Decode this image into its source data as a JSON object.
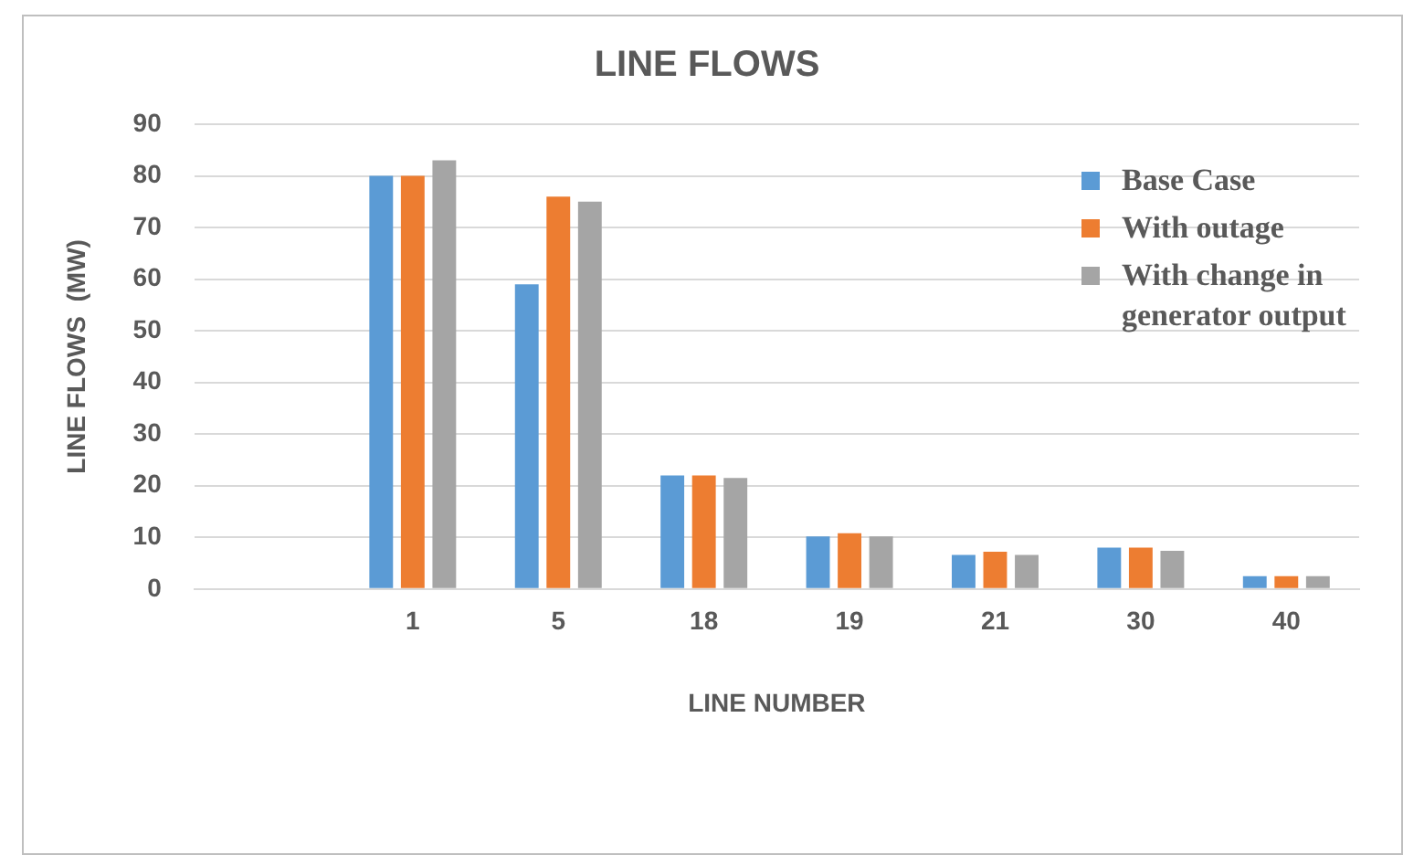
{
  "chart_data": {
    "type": "bar",
    "title": "LINE FLOWS",
    "xlabel": "LINE NUMBER",
    "ylabel": "LINE FLOWS  (MW)",
    "categories": [
      null,
      "1",
      "5",
      "18",
      "19",
      "21",
      "30",
      "40"
    ],
    "series": [
      {
        "name": "Base Case",
        "color": "#5b9bd5",
        "values": [
          null,
          80,
          59,
          22,
          10.2,
          6.6,
          8,
          2.5
        ]
      },
      {
        "name": "With outage",
        "color": "#ed7d31",
        "values": [
          null,
          80,
          76,
          22,
          10.8,
          7.2,
          8,
          2.5
        ]
      },
      {
        "name": "With change in generator output",
        "color": "#a5a5a5",
        "values": [
          null,
          83,
          75,
          21.5,
          10.2,
          6.6,
          7.4,
          2.5
        ]
      }
    ],
    "ylim": [
      0,
      90
    ],
    "yticks": [
      0,
      10,
      20,
      30,
      40,
      50,
      60,
      70,
      80,
      90
    ],
    "grid": "y",
    "legend": "top right"
  }
}
